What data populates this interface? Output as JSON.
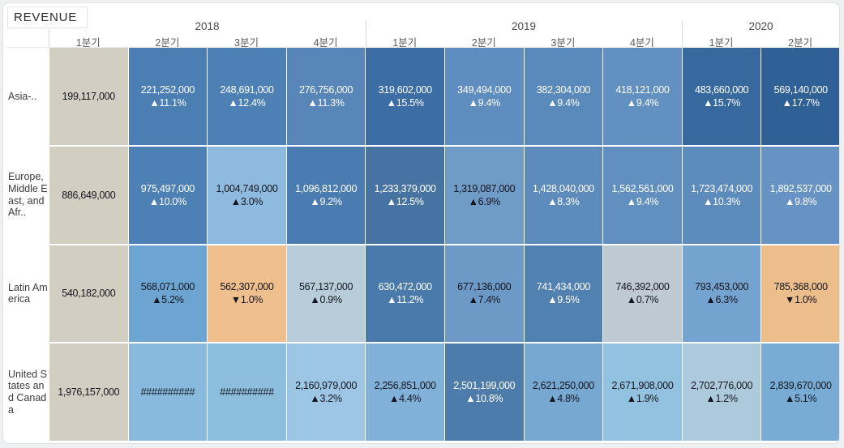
{
  "title": "REVENUE",
  "accent_colors": {
    "first_quarter_beige": "#d3cec2",
    "increase_blue": "#4b7eb3",
    "decrease_orange": "#efc08d",
    "page_background": "#eef0f1"
  },
  "columns": {
    "years": [
      {
        "label": "2018",
        "quarters": [
          "1분기",
          "2분기",
          "3분기",
          "4분기"
        ]
      },
      {
        "label": "2019",
        "quarters": [
          "1분기",
          "2분기",
          "3분기",
          "4분기"
        ]
      },
      {
        "label": "2020",
        "quarters": [
          "1분기",
          "2분기"
        ]
      }
    ]
  },
  "rows": [
    {
      "label": "Asia-..",
      "cells": [
        {
          "v": "199,117,000",
          "c": "",
          "bg": "#d3cec2",
          "fg": "dark"
        },
        {
          "v": "221,252,000",
          "c": "▲11.1%",
          "bg": "#4b7eb3",
          "fg": "light"
        },
        {
          "v": "248,691,000",
          "c": "▲12.4%",
          "bg": "#4d80b5",
          "fg": "light"
        },
        {
          "v": "276,756,000",
          "c": "▲11.3%",
          "bg": "#5886b9",
          "fg": "light"
        },
        {
          "v": "319,602,000",
          "c": "▲15.5%",
          "bg": "#3c6ea5",
          "fg": "light"
        },
        {
          "v": "349,494,000",
          "c": "▲9.4%",
          "bg": "#5f8dbf",
          "fg": "light"
        },
        {
          "v": "382,304,000",
          "c": "▲9.4%",
          "bg": "#5a89bb",
          "fg": "light"
        },
        {
          "v": "418,121,000",
          "c": "▲9.4%",
          "bg": "#6290c1",
          "fg": "light"
        },
        {
          "v": "483,660,000",
          "c": "▲15.7%",
          "bg": "#37699f",
          "fg": "light"
        },
        {
          "v": "569,140,000",
          "c": "▲17.7%",
          "bg": "#2f6197",
          "fg": "light"
        }
      ]
    },
    {
      "label": "Europe, Middle East, and Afr..",
      "cells": [
        {
          "v": "886,649,000",
          "c": "",
          "bg": "#d3cec2",
          "fg": "dark"
        },
        {
          "v": "975,497,000",
          "c": "▲10.0%",
          "bg": "#4d80b5",
          "fg": "light"
        },
        {
          "v": "1,004,749,000",
          "c": "▲3.0%",
          "bg": "#8dbade",
          "fg": "dark"
        },
        {
          "v": "1,096,812,000",
          "c": "▲9.2%",
          "bg": "#4a7cb1",
          "fg": "light"
        },
        {
          "v": "1,233,379,000",
          "c": "▲12.5%",
          "bg": "#4673a1",
          "fg": "light"
        },
        {
          "v": "1,319,087,000",
          "c": "▲6.9%",
          "bg": "#6f9bc7",
          "fg": "dark"
        },
        {
          "v": "1,428,040,000",
          "c": "▲8.3%",
          "bg": "#5d8bbc",
          "fg": "light"
        },
        {
          "v": "1,562,561,000",
          "c": "▲9.4%",
          "bg": "#6190c0",
          "fg": "light"
        },
        {
          "v": "1,723,474,000",
          "c": "▲10.3%",
          "bg": "#5d8bbc",
          "fg": "light"
        },
        {
          "v": "1,892,537,000",
          "c": "▲9.8%",
          "bg": "#6693c3",
          "fg": "light"
        }
      ]
    },
    {
      "label": "Latin America",
      "cells": [
        {
          "v": "540,182,000",
          "c": "",
          "bg": "#d3cec2",
          "fg": "dark"
        },
        {
          "v": "568,071,000",
          "c": "▲5.2%",
          "bg": "#6ca5d2",
          "fg": "dark"
        },
        {
          "v": "562,307,000",
          "c": "▼1.0%",
          "bg": "#efc08d",
          "fg": "dark"
        },
        {
          "v": "567,137,000",
          "c": "▲0.9%",
          "bg": "#b7cdd9",
          "fg": "dark"
        },
        {
          "v": "630,472,000",
          "c": "▲11.2%",
          "bg": "#4a7aac",
          "fg": "light"
        },
        {
          "v": "677,136,000",
          "c": "▲7.4%",
          "bg": "#6d99c6",
          "fg": "dark"
        },
        {
          "v": "741,434,000",
          "c": "▲9.5%",
          "bg": "#5081b1",
          "fg": "light"
        },
        {
          "v": "746,392,000",
          "c": "▲0.7%",
          "bg": "#bdcad2",
          "fg": "dark"
        },
        {
          "v": "793,453,000",
          "c": "▲6.3%",
          "bg": "#74a3cf",
          "fg": "dark"
        },
        {
          "v": "785,368,000",
          "c": "▼1.0%",
          "bg": "#ecbe8b",
          "fg": "dark"
        }
      ]
    },
    {
      "label": "United States and Canada",
      "cells": [
        {
          "v": "1,976,157,000",
          "c": "",
          "bg": "#d3cec2",
          "fg": "dark"
        },
        {
          "v": "##########",
          "c": "",
          "bg": "#88badd",
          "fg": "dark"
        },
        {
          "v": "##########",
          "c": "",
          "bg": "#8dbede",
          "fg": "dark"
        },
        {
          "v": "2,160,979,000",
          "c": "▲3.2%",
          "bg": "#9cc6e3",
          "fg": "dark"
        },
        {
          "v": "2,256,851,000",
          "c": "▲4.4%",
          "bg": "#81b1d8",
          "fg": "dark"
        },
        {
          "v": "2,501,199,000",
          "c": "▲10.8%",
          "bg": "#4d7cab",
          "fg": "light"
        },
        {
          "v": "2,621,250,000",
          "c": "▲4.8%",
          "bg": "#76a8d2",
          "fg": "dark"
        },
        {
          "v": "2,671,908,000",
          "c": "▲1.9%",
          "bg": "#93c2e1",
          "fg": "dark"
        },
        {
          "v": "2,702,776,000",
          "c": "▲1.2%",
          "bg": "#adcadd",
          "fg": "dark"
        },
        {
          "v": "2,839,670,000",
          "c": "▲5.1%",
          "bg": "#79acd5",
          "fg": "dark"
        }
      ]
    }
  ],
  "chart_data": {
    "type": "heatmap",
    "title": "REVENUE",
    "x_categories": [
      "2018 1분기",
      "2018 2분기",
      "2018 3분기",
      "2018 4분기",
      "2019 1분기",
      "2019 2분기",
      "2019 3분기",
      "2019 4분기",
      "2020 1분기",
      "2020 2분기"
    ],
    "y_categories": [
      "Asia-..",
      "Europe, Middle East, and Afr..",
      "Latin America",
      "United States and Canada"
    ],
    "series": [
      {
        "name": "Asia-..",
        "values": [
          199117000,
          221252000,
          248691000,
          276756000,
          319602000,
          349494000,
          382304000,
          418121000,
          483660000,
          569140000
        ],
        "pct_change": [
          null,
          11.1,
          12.4,
          11.3,
          15.5,
          9.4,
          9.4,
          9.4,
          15.7,
          17.7
        ]
      },
      {
        "name": "Europe, Middle East, and Afr..",
        "values": [
          886649000,
          975497000,
          1004749000,
          1096812000,
          1233379000,
          1319087000,
          1428040000,
          1562561000,
          1723474000,
          1892537000
        ],
        "pct_change": [
          null,
          10.0,
          3.0,
          9.2,
          12.5,
          6.9,
          8.3,
          9.4,
          10.3,
          9.8
        ]
      },
      {
        "name": "Latin America",
        "values": [
          540182000,
          568071000,
          562307000,
          567137000,
          630472000,
          677136000,
          741434000,
          746392000,
          793453000,
          785368000
        ],
        "pct_change": [
          null,
          5.2,
          -1.0,
          0.9,
          11.2,
          7.4,
          9.5,
          0.7,
          6.3,
          -1.0
        ]
      },
      {
        "name": "United States and Canada",
        "values": [
          1976157000,
          null,
          null,
          2160979000,
          2256851000,
          2501199000,
          2621250000,
          2671908000,
          2702776000,
          2839670000
        ],
        "pct_change": [
          null,
          null,
          null,
          3.2,
          4.4,
          10.8,
          4.8,
          1.9,
          1.2,
          5.1
        ],
        "note": "columns 2-3 of 2018 display ########## (value overflow)"
      }
    ],
    "legend": "cell shading: blue = quarter-over-quarter increase (darker = larger), orange = decrease, beige = first quarter baseline",
    "layout": {
      "grid": false,
      "first_column_background": "#d3cec2",
      "up_marker": "▲",
      "down_marker": "▼"
    }
  }
}
